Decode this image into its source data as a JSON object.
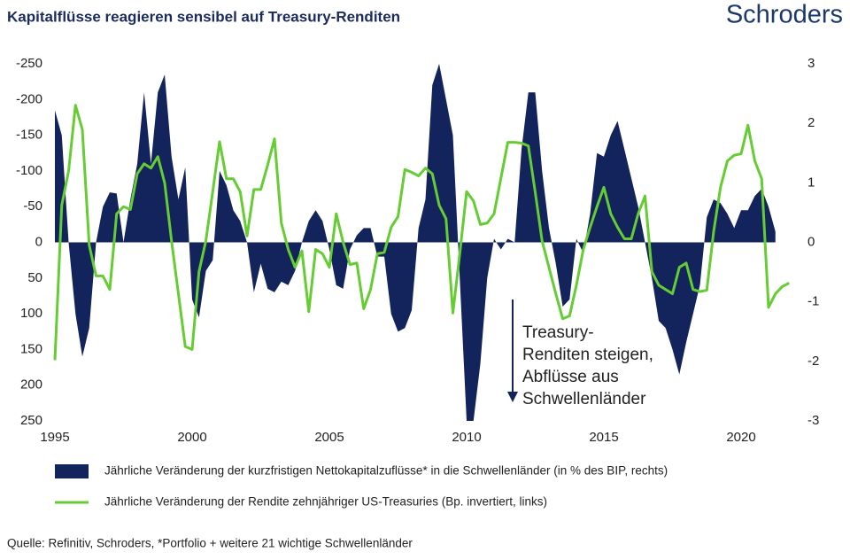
{
  "chart_data": {
    "type": "area-line",
    "title": "Kapitalflüsse reagieren sensibel auf Treasury-Renditen",
    "logo": "Schroders",
    "source": "Quelle: Refinitiv, Schroders, *Portfolio + weitere 21 wichtige Schwellenländer",
    "annotation": [
      "Treasury-",
      "Renditen steigen,",
      "Abflüsse aus",
      "Schwellenländer"
    ],
    "xlim": [
      1995,
      2022
    ],
    "xticks": [
      1995,
      2000,
      2005,
      2010,
      2015,
      2020
    ],
    "ylim": [
      250,
      -250
    ],
    "yticks": [
      -250,
      -200,
      -150,
      -100,
      -50,
      0,
      50,
      100,
      150,
      200,
      250
    ],
    "y2lim": [
      -3,
      3
    ],
    "y2ticks": [
      3,
      2,
      1,
      0,
      -1,
      -2,
      -3
    ],
    "grid": false,
    "x": [
      1995,
      1995.25,
      1995.5,
      1995.75,
      1996,
      1996.25,
      1996.5,
      1996.75,
      1997,
      1997.25,
      1997.5,
      1997.75,
      1998,
      1998.25,
      1998.5,
      1998.75,
      1999,
      1999.25,
      1999.5,
      1999.75,
      2000,
      2000.25,
      2000.5,
      2000.75,
      2001,
      2001.25,
      2001.5,
      2001.75,
      2002,
      2002.25,
      2002.5,
      2002.75,
      2003,
      2003.25,
      2003.5,
      2003.75,
      2004,
      2004.25,
      2004.5,
      2004.75,
      2005,
      2005.25,
      2005.5,
      2005.75,
      2006,
      2006.25,
      2006.5,
      2006.75,
      2007,
      2007.25,
      2007.5,
      2007.75,
      2008,
      2008.25,
      2008.5,
      2008.75,
      2009,
      2009.25,
      2009.5,
      2009.75,
      2010,
      2010.25,
      2010.5,
      2010.75,
      2011,
      2011.25,
      2011.5,
      2011.75,
      2012,
      2012.25,
      2012.5,
      2012.75,
      2013,
      2013.25,
      2013.5,
      2013.75,
      2014,
      2014.25,
      2014.5,
      2014.75,
      2015,
      2015.25,
      2015.5,
      2015.75,
      2016,
      2016.25,
      2016.5,
      2016.75,
      2017,
      2017.25,
      2017.5,
      2017.75,
      2018,
      2018.25,
      2018.5,
      2018.75,
      2019,
      2019.25,
      2019.5,
      2019.75,
      2020,
      2020.25,
      2020.5,
      2020.75,
      2021,
      2021.25,
      2021.5,
      2021.75
    ],
    "series": [
      {
        "name": "Jährliche Veränderung der kurzfristigen Nettokapitalzuflüsse* in die Schwellenländer (in % des BIP, rechts)",
        "color": "#13235b",
        "kind": "area",
        "axis": "y2",
        "values": [
          2.22,
          1.8,
          0,
          -1.2,
          -1.92,
          -1.44,
          0,
          0.6,
          0.84,
          0.82,
          0,
          0.72,
          1.32,
          2.52,
          1.32,
          2.52,
          2.82,
          1.44,
          0.72,
          1.26,
          -0.96,
          -1.26,
          -0.48,
          -0.3,
          1.2,
          0.96,
          0.54,
          0.36,
          0,
          -0.84,
          -0.36,
          -0.78,
          -0.84,
          -0.66,
          -0.72,
          -0.48,
          0,
          0.36,
          0.54,
          0.36,
          -0.12,
          -0.72,
          -0.78,
          -0.12,
          0.12,
          0.24,
          0.24,
          -0.24,
          -0.24,
          -1.2,
          -1.5,
          -1.44,
          -1.14,
          0.24,
          0.72,
          2.64,
          3,
          2.4,
          1.8,
          -0.6,
          -3,
          -3,
          -2.04,
          -0.6,
          0.06,
          -0.12,
          0.06,
          0,
          1.56,
          2.52,
          2.52,
          1.2,
          0.24,
          -0.36,
          -1.08,
          -0.96,
          0.06,
          -0.18,
          0.48,
          1.5,
          1.44,
          1.8,
          2.04,
          1.56,
          1.08,
          0.6,
          0,
          -0.6,
          -1.32,
          -1.44,
          -1.8,
          -2.22,
          -1.68,
          -1.2,
          -0.72,
          0.42,
          0.72,
          0.66,
          0.48,
          0.24,
          0.54,
          0.54,
          0.78,
          0.9,
          0.6,
          0.18,
          null,
          null
        ]
      },
      {
        "name": "Jährliche Veränderung der Rendite zehnjähriger US-Treasuries (Bp. invertiert, links)",
        "color": "#66cc33",
        "kind": "line",
        "values": [
          165,
          -52,
          -100,
          -192,
          -158,
          4,
          47,
          47,
          66,
          -40,
          -50,
          -46,
          -96,
          -110,
          -104,
          -120,
          -83,
          -2,
          72,
          146,
          150,
          41,
          -2,
          -71,
          -141,
          -89,
          -89,
          -71,
          -9,
          -74,
          -74,
          -108,
          -145,
          -27,
          10,
          35,
          12,
          97,
          10,
          16,
          35,
          -40,
          0,
          31,
          29,
          93,
          66,
          16,
          14,
          -21,
          -36,
          -102,
          -98,
          -93,
          -104,
          -96,
          -52,
          -33,
          99,
          16,
          -71,
          -58,
          -25,
          -27,
          -40,
          -90,
          -140,
          -140,
          -139,
          -135,
          -70,
          -2,
          35,
          72,
          107,
          103,
          60,
          10,
          -21,
          -50,
          -77,
          -40,
          -21,
          -5,
          -5,
          -40,
          -65,
          41,
          60,
          66,
          72,
          35,
          29,
          66,
          69,
          67,
          -15,
          -77,
          -114,
          -122,
          -124,
          -164,
          -114,
          -89,
          91,
          72,
          62,
          57
        ]
      }
    ]
  }
}
